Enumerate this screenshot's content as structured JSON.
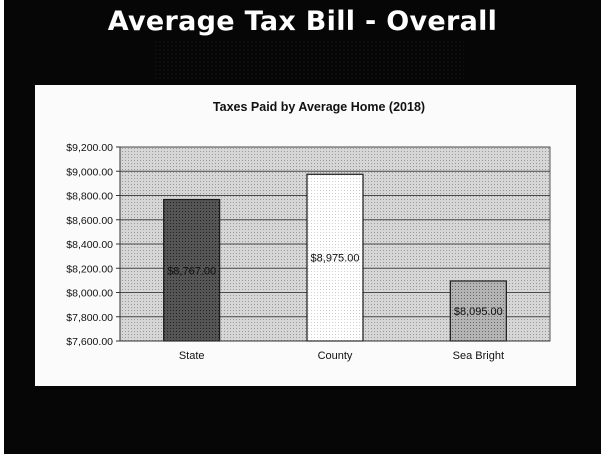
{
  "slide": {
    "title": "Average Tax Bill - Overall"
  },
  "colors": {
    "background": "#060606",
    "panel": "#fbfbfb",
    "plot_area": "#c8c8c8",
    "state_bar": "#4a4a4a",
    "county_bar": "#ffffff",
    "sea_bright_bar": "#a8a8a8"
  },
  "chart_data": {
    "type": "bar",
    "title": "Taxes Paid by Average Home (2018)",
    "xlabel": "",
    "ylabel": "",
    "categories": [
      "State",
      "County",
      "Sea Bright"
    ],
    "values": [
      8767,
      8975,
      8095
    ],
    "data_labels": [
      "$8,767.00",
      "$8,975.00",
      "$8,095.00"
    ],
    "ylim": [
      7600,
      9200
    ],
    "yticks": [
      7600,
      7800,
      8000,
      8200,
      8400,
      8600,
      8800,
      9000,
      9200
    ],
    "ytick_labels": [
      "$7,600.00",
      "$7,800.00",
      "$8,000.00",
      "$8,200.00",
      "$8,400.00",
      "$8,600.00",
      "$8,800.00",
      "$9,000.00",
      "$9,200.00"
    ],
    "grid": true,
    "legend": "none"
  }
}
